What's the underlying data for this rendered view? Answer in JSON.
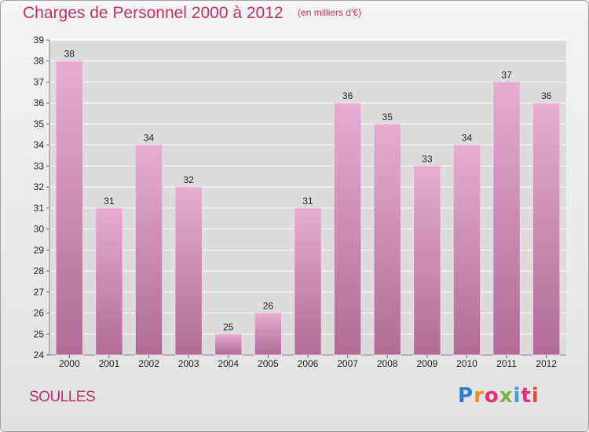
{
  "header": {
    "title": "Charges de Personnel 2000 à 2012",
    "subtitle": "(en milliers d'€)"
  },
  "footer": {
    "commune": "SOULLES",
    "logo_text": "Proxiti",
    "logo_letters": [
      "P",
      "r",
      "o",
      "x",
      "i",
      "t",
      "i"
    ]
  },
  "colors": {
    "title": "#c0306a",
    "bar_top": "#e8acd0",
    "bar_bottom": "#b06c94",
    "grid": "#ffffff",
    "axis_text": "#222222"
  },
  "chart_data": {
    "type": "bar",
    "title": "Charges de Personnel 2000 à 2012",
    "subtitle": "(en milliers d'€)",
    "categories": [
      "2000",
      "2001",
      "2002",
      "2003",
      "2004",
      "2005",
      "2006",
      "2007",
      "2008",
      "2009",
      "2010",
      "2011",
      "2012"
    ],
    "values": [
      38,
      31,
      34,
      32,
      25,
      26,
      31,
      36,
      35,
      33,
      34,
      37,
      36
    ],
    "ylim": [
      24,
      39
    ],
    "yticks": [
      24,
      25,
      26,
      27,
      28,
      29,
      30,
      31,
      32,
      33,
      34,
      35,
      36,
      37,
      38,
      39
    ],
    "grid": true,
    "data_labels": true,
    "xlabel": "",
    "ylabel": ""
  }
}
